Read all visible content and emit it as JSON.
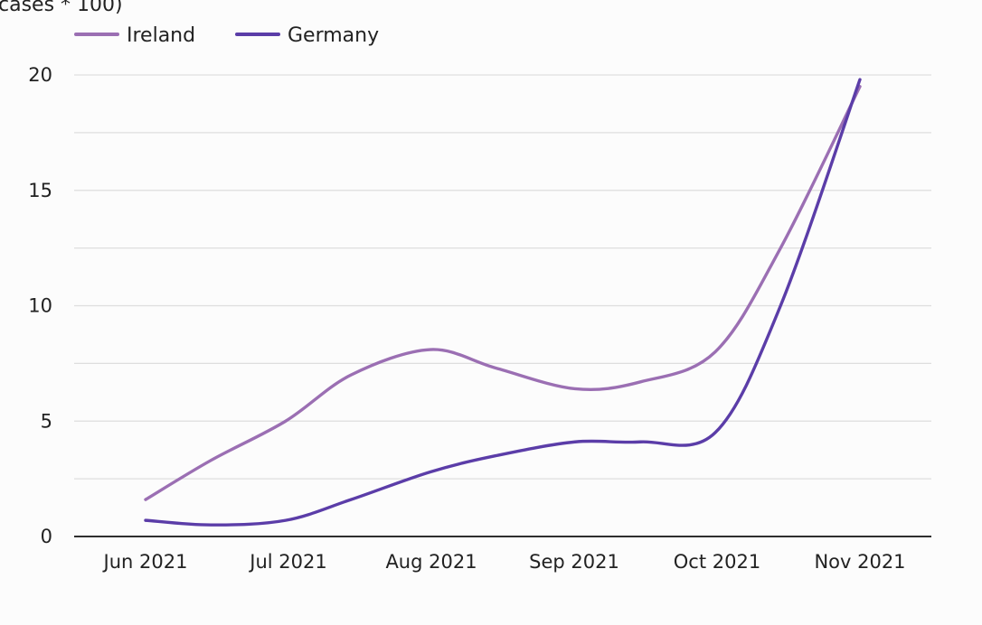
{
  "chart_data": {
    "type": "line",
    "title": "",
    "ylabel": "cases * 100)",
    "xlabel": "",
    "categories": [
      "Jun 2021",
      "Jul 2021",
      "Aug 2021",
      "Sep 2021",
      "Oct 2021",
      "Nov 2021"
    ],
    "ylim": [
      0,
      20
    ],
    "yticks": [
      0,
      5,
      10,
      15,
      20
    ],
    "minor_gridlines": [
      2.5,
      7.5,
      12.5,
      17.5
    ],
    "grid": true,
    "legend_position": "top-left",
    "x": [
      "2021-06-01",
      "2021-06-15",
      "2021-07-01",
      "2021-07-15",
      "2021-08-01",
      "2021-08-15",
      "2021-09-01",
      "2021-09-15",
      "2021-10-01",
      "2021-10-15",
      "2021-11-01"
    ],
    "series": [
      {
        "name": "Ireland",
        "color": "#9b6fb3",
        "values": [
          1.6,
          3.3,
          5.0,
          7.0,
          8.1,
          7.3,
          6.4,
          6.7,
          8.0,
          12.5,
          19.5
        ]
      },
      {
        "name": "Germany",
        "color": "#5b3da8",
        "values": [
          0.7,
          0.5,
          0.7,
          1.6,
          2.8,
          3.5,
          4.1,
          4.1,
          4.5,
          10.0,
          19.8
        ]
      }
    ]
  }
}
